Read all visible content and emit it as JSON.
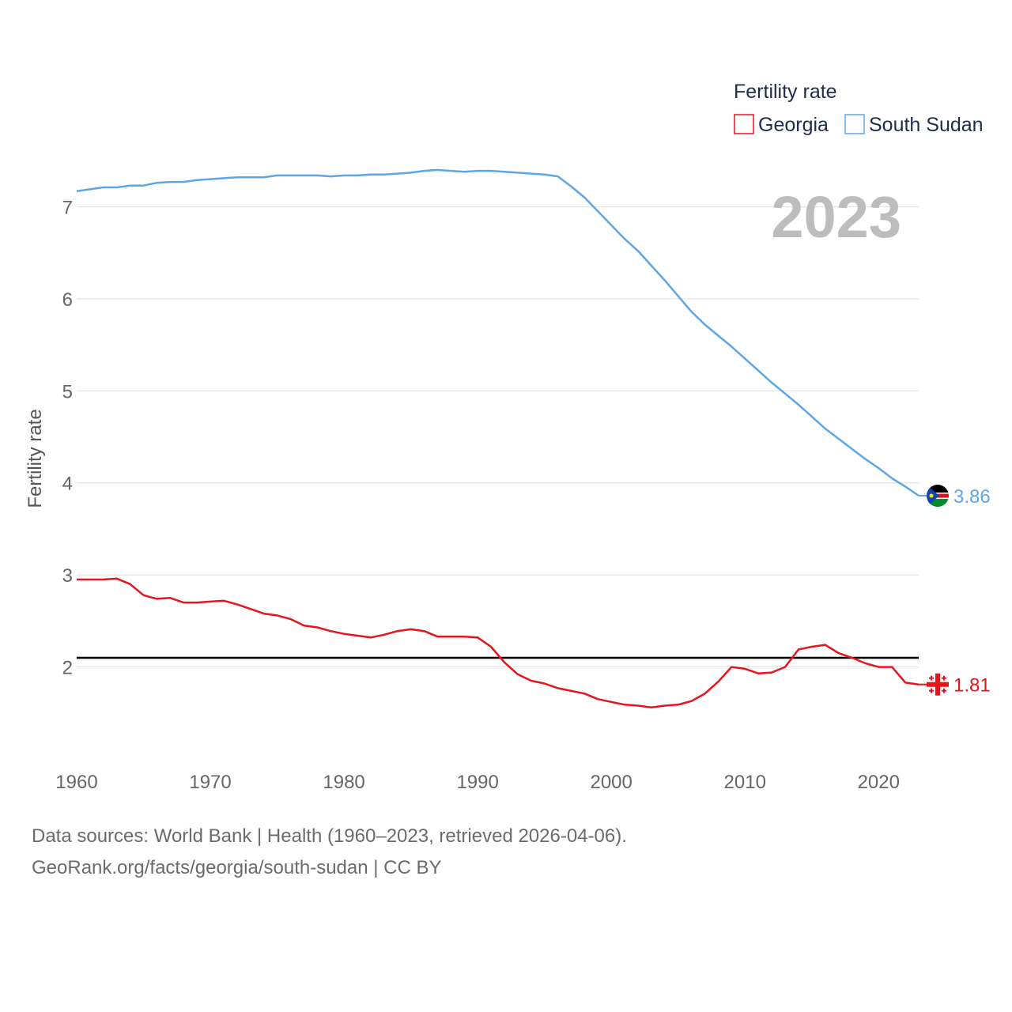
{
  "chart_data": {
    "type": "line",
    "title": "",
    "xlabel": "",
    "ylabel": "Fertility rate",
    "xlim": [
      1960,
      2023
    ],
    "ylim": [
      1.0,
      7.7
    ],
    "yticks": [
      2,
      3,
      4,
      5,
      6,
      7
    ],
    "xticks": [
      1960,
      1970,
      1980,
      1990,
      2000,
      2010,
      2020
    ],
    "grid": true,
    "year_label": "2023",
    "legend": {
      "title": "Fertility rate",
      "position": "top-right"
    },
    "reference_line": {
      "y": 2.1
    },
    "x": [
      1960,
      1961,
      1962,
      1963,
      1964,
      1965,
      1966,
      1967,
      1968,
      1969,
      1970,
      1971,
      1972,
      1973,
      1974,
      1975,
      1976,
      1977,
      1978,
      1979,
      1980,
      1981,
      1982,
      1983,
      1984,
      1985,
      1986,
      1987,
      1988,
      1989,
      1990,
      1991,
      1992,
      1993,
      1994,
      1995,
      1996,
      1997,
      1998,
      1999,
      2000,
      2001,
      2002,
      2003,
      2004,
      2005,
      2006,
      2007,
      2008,
      2009,
      2010,
      2011,
      2012,
      2013,
      2014,
      2015,
      2016,
      2017,
      2018,
      2019,
      2020,
      2021,
      2022,
      2023
    ],
    "series": [
      {
        "name": "Georgia",
        "color": "#e8141c",
        "end_label": "1.81",
        "flag": "georgia-flag",
        "values": [
          2.95,
          2.95,
          2.95,
          2.96,
          2.9,
          2.78,
          2.74,
          2.75,
          2.7,
          2.7,
          2.71,
          2.72,
          2.68,
          2.63,
          2.58,
          2.56,
          2.52,
          2.45,
          2.43,
          2.39,
          2.36,
          2.34,
          2.32,
          2.35,
          2.39,
          2.41,
          2.39,
          2.33,
          2.33,
          2.33,
          2.32,
          2.22,
          2.05,
          1.92,
          1.85,
          1.82,
          1.77,
          1.74,
          1.71,
          1.65,
          1.62,
          1.59,
          1.58,
          1.56,
          1.58,
          1.59,
          1.63,
          1.71,
          1.84,
          2.0,
          1.98,
          1.93,
          1.94,
          2.0,
          2.19,
          2.22,
          2.24,
          2.15,
          2.1,
          2.04,
          2.0,
          2.0,
          1.83,
          1.81
        ]
      },
      {
        "name": "South Sudan",
        "color": "#5ea6e8",
        "end_label": "3.86",
        "flag": "south-sudan-flag",
        "values": [
          7.17,
          7.19,
          7.21,
          7.21,
          7.23,
          7.23,
          7.26,
          7.27,
          7.27,
          7.29,
          7.3,
          7.31,
          7.32,
          7.32,
          7.32,
          7.34,
          7.34,
          7.34,
          7.34,
          7.33,
          7.34,
          7.34,
          7.35,
          7.35,
          7.36,
          7.37,
          7.39,
          7.4,
          7.39,
          7.38,
          7.39,
          7.39,
          7.38,
          7.37,
          7.36,
          7.35,
          7.33,
          7.22,
          7.1,
          6.95,
          6.8,
          6.65,
          6.52,
          6.36,
          6.2,
          6.03,
          5.86,
          5.72,
          5.6,
          5.48,
          5.35,
          5.22,
          5.09,
          4.97,
          4.85,
          4.72,
          4.59,
          4.48,
          4.37,
          4.26,
          4.16,
          4.05,
          3.96,
          3.86
        ]
      }
    ]
  },
  "footer": {
    "line1": "Data sources: World Bank | Health (1960–2023, retrieved 2026-04-06).",
    "line2": "GeoRank.org/facts/georgia/south-sudan | CC BY"
  }
}
